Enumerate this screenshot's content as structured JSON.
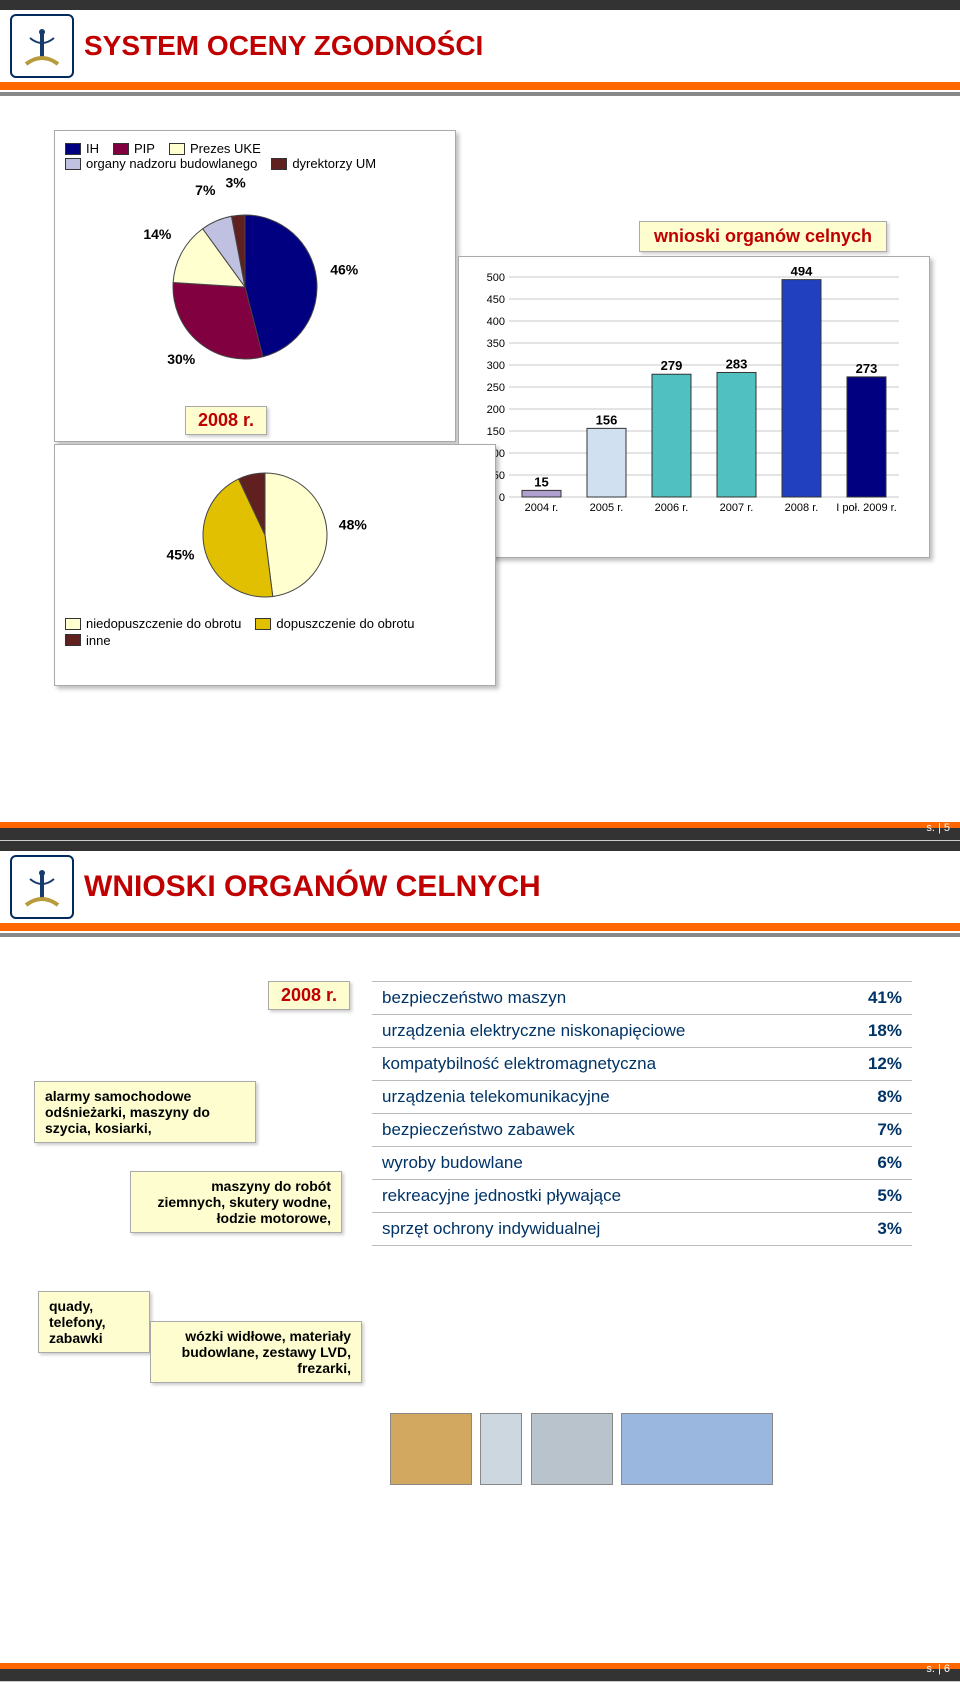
{
  "slide1": {
    "title": "SYSTEM OCENY ZGODNOŚCI",
    "pie": {
      "legend": [
        {
          "label": "IH",
          "color": "#000080"
        },
        {
          "label": "PIP",
          "color": "#800040"
        },
        {
          "label": "Prezes UKE",
          "color": "#ffffd0"
        },
        {
          "label": "organy nadzoru budowlanego",
          "color": "#c0c0e0"
        },
        {
          "label": "dyrektorzy UM",
          "color": "#602020"
        }
      ],
      "year": "2008 r.",
      "slices": [
        {
          "label": "46%",
          "value": 46,
          "color": "#000080"
        },
        {
          "label": "30%",
          "value": 30,
          "color": "#800040"
        },
        {
          "label": "14%",
          "value": 14,
          "color": "#ffffd0"
        },
        {
          "label": "7%",
          "value": 7,
          "color": "#c0c0e0"
        },
        {
          "label": "3%",
          "value": 3,
          "color": "#602020"
        }
      ],
      "label_fontsize": 14
    },
    "pie2": {
      "legend": [
        {
          "label": "niedopuszczenie do obrotu",
          "color": "#ffffd0"
        },
        {
          "label": "dopuszczenie do obrotu",
          "color": "#e0c000"
        },
        {
          "label": "inne",
          "color": "#602020"
        }
      ],
      "slices": [
        {
          "label": "48%",
          "value": 48,
          "color": "#ffffd0"
        },
        {
          "label": "45%",
          "value": 45,
          "color": "#e0c000"
        },
        {
          "label": "7%",
          "value": 7,
          "color": "#602020"
        }
      ]
    },
    "bar": {
      "title": "wnioski organów celnych",
      "categories": [
        "2004 r.",
        "2005 r.",
        "2006 r.",
        "2007 r.",
        "2008 r.",
        "I poł. 2009 r."
      ],
      "values": [
        15,
        156,
        279,
        283,
        494,
        273
      ],
      "colors": [
        "#b0a0d0",
        "#d0e0f0",
        "#50c0c0",
        "#50c0c0",
        "#2040c0",
        "#000080"
      ],
      "ylim": [
        0,
        500
      ],
      "ytick_step": 50,
      "label_fontsize": 13,
      "background": "#ffffff",
      "grid": "#c8c8c8"
    },
    "page": "s. | 5"
  },
  "slide2": {
    "title": "WNIOSKI ORGANÓW CELNYCH",
    "year": "2008 r.",
    "callouts": [
      "alarmy samochodowe odśnieżarki, maszyny do szycia, kosiarki,",
      "maszyny do robót ziemnych, skutery wodne, łodzie motorowe,",
      "quady, telefony, zabawki",
      "wózki widłowe, materiały budowlane, zestawy LVD, frezarki,"
    ],
    "rows": [
      {
        "label": "bezpieczeństwo maszyn",
        "pct": "41%"
      },
      {
        "label": "urządzenia elektryczne niskonapięciowe",
        "pct": "18%"
      },
      {
        "label": "kompatybilność elektromagnetyczna",
        "pct": "12%"
      },
      {
        "label": "urządzenia telekomunikacyjne",
        "pct": "8%"
      },
      {
        "label": "bezpieczeństwo zabawek",
        "pct": "7%"
      },
      {
        "label": "wyroby budowlane",
        "pct": "6%"
      },
      {
        "label": "rekreacyjne jednostki pływające",
        "pct": "5%"
      },
      {
        "label": "sprzęt ochrony indywidualnej",
        "pct": "3%"
      }
    ],
    "row_fontsize": 17,
    "page": "s. | 6"
  }
}
